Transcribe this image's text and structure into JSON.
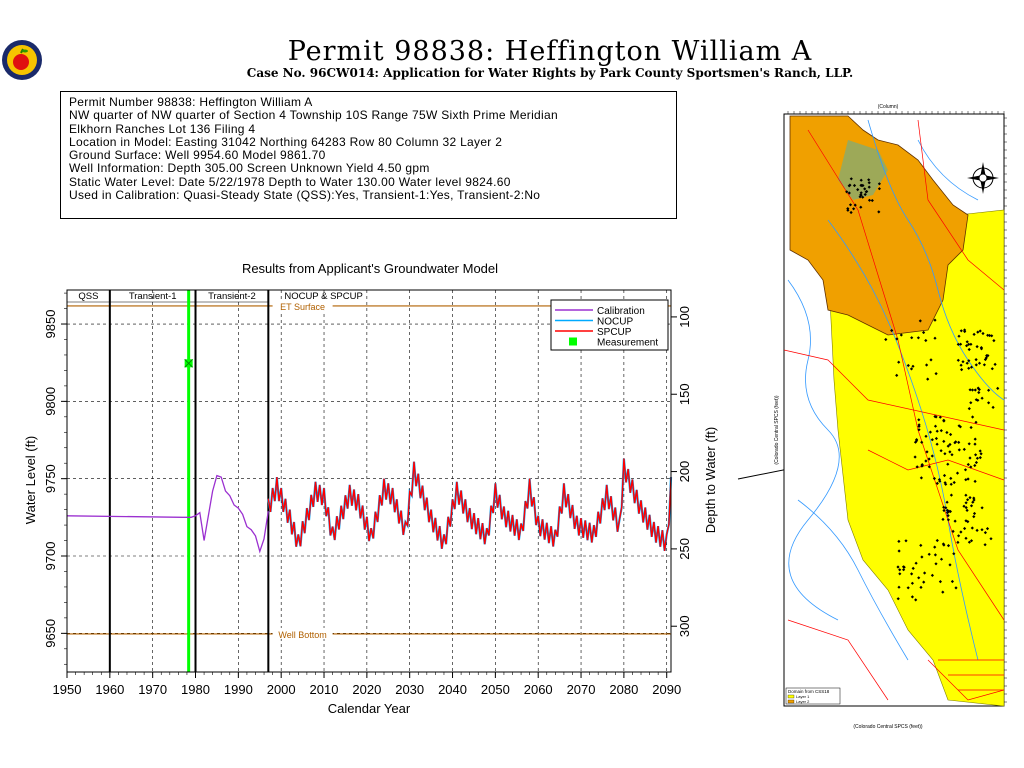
{
  "header": {
    "title": "Permit 98838:  Heffington William A",
    "subtitle": "Case No. 96CW014: Application for Water Rights by Park County Sportsmen's Ranch, LLP."
  },
  "info": {
    "lines": [
      "Permit Number 98838: Heffington William A",
      "",
      "NW quarter of NW quarter of Section 4 Township 10S Range 75W Sixth Prime Meridian",
      "Elkhorn Ranches Lot 136 Filing 4",
      "Location in Model: Easting 31042 Northing  64283 Row  80 Column 32 Layer 2",
      "Ground Surface: Well  9954.60 Model  9861.70",
      "Well Information: Depth   305.00 Screen Unknown Yield      4.50 gpm",
      "Static Water Level: Date  5/22/1978 Depth to Water   130.00 Water level  9824.60",
      "Used in Calibration: Quasi-Steady State (QSS):Yes, Transient-1:Yes, Transient-2:No"
    ]
  },
  "map": {
    "north_arrow": "north-arrow",
    "x_axis_top_label": "(Column)",
    "y_axis_label": "(Colorado Central SPCS (feet))",
    "x_axis_label": "(Colorado Central SPCS (feet))",
    "legend_title": "Domain from CSS18",
    "legend_layers": [
      "Layer 1",
      "Layer 2"
    ],
    "colors": {
      "layer1": "#ffff00",
      "layer2": "#f0a000"
    }
  },
  "chart_data": {
    "type": "line",
    "title": "Results from Applicant's Groundwater Model",
    "xlabel": "Calendar Year",
    "ylabel": "Water Level (ft)",
    "y2label": "Depth to Water (ft)",
    "xlim": [
      1950,
      2091
    ],
    "ylim": [
      9625,
      9872
    ],
    "xticks": [
      1950,
      1960,
      1970,
      1980,
      1990,
      2000,
      2010,
      2020,
      2030,
      2040,
      2050,
      2060,
      2070,
      2080,
      2090
    ],
    "yticks": [
      9650,
      9700,
      9750,
      9800,
      9850
    ],
    "y2ticks": [
      100,
      150,
      200,
      250,
      300
    ],
    "ground_surface": 9954.6,
    "periods": [
      {
        "label": "QSS",
        "start": 1950,
        "end": 1960
      },
      {
        "label": "Transient-1",
        "start": 1960,
        "end": 1980
      },
      {
        "label": "Transient-2",
        "start": 1980,
        "end": 1997
      },
      {
        "label": "NOCUP  &  SPCUP",
        "start": 1997,
        "end": 2091
      }
    ],
    "reference_lines": [
      {
        "label": "ET Surface",
        "y": 9861.7,
        "color": "#b06000"
      },
      {
        "label": "Well Bottom",
        "y": 9649.6,
        "color": "#b06000"
      }
    ],
    "measurement": {
      "label": "Measurement",
      "x": 1978.4,
      "y": 9824.6,
      "color": "#00ff00"
    },
    "legend": [
      {
        "name": "Calibration",
        "color": "#9b30d0"
      },
      {
        "name": "NOCUP",
        "color": "#00aaff"
      },
      {
        "name": "SPCUP",
        "color": "#ff0000"
      },
      {
        "name": "Measurement",
        "color": "#00ff00"
      }
    ],
    "series": [
      {
        "name": "Calibration",
        "color": "#9b30d0",
        "x": [
          1950,
          1977,
          1979,
          1980,
          1981,
          1982,
          1984,
          1985,
          1986,
          1987,
          1988,
          1989,
          1990,
          1991,
          1992,
          1993,
          1994,
          1995,
          1996,
          1997
        ],
        "y": [
          9726,
          9725,
          9725,
          9726,
          9728,
          9710,
          9742,
          9752,
          9751,
          9742,
          9739,
          9733,
          9731,
          9727,
          9719,
          9717,
          9713,
          9703,
          9711,
          9729
        ]
      },
      {
        "name": "NOCUP",
        "color": "#00aaff",
        "x": [
          1997,
          1999,
          2002,
          2004,
          2008,
          2010,
          2012,
          2016,
          2018,
          2021,
          2024,
          2026,
          2029,
          2031,
          2035,
          2038,
          2041,
          2044,
          2048,
          2050,
          2052,
          2056,
          2058,
          2060,
          2064,
          2066,
          2069,
          2073,
          2076,
          2079,
          2080,
          2084,
          2087,
          2090,
          2091
        ],
        "y": [
          9731,
          9745,
          9724,
          9708,
          9742,
          9738,
          9713,
          9740,
          9734,
          9712,
          9744,
          9738,
          9716,
          9755,
          9724,
          9708,
          9742,
          9725,
          9712,
          9741,
          9726,
          9715,
          9744,
          9720,
          9711,
          9741,
          9720,
          9714,
          9740,
          9718,
          9757,
          9730,
          9716,
          9708,
          9745
        ]
      },
      {
        "name": "SPCUP",
        "color": "#ff0000",
        "x": [
          1997,
          1999,
          2002,
          2004,
          2008,
          2010,
          2012,
          2016,
          2018,
          2021,
          2024,
          2026,
          2029,
          2031,
          2035,
          2038,
          2041,
          2044,
          2048,
          2050,
          2052,
          2056,
          2058,
          2060,
          2064,
          2066,
          2069,
          2073,
          2076,
          2079,
          2080,
          2084,
          2087,
          2090,
          2091
        ],
        "y": [
          9731,
          9745,
          9724,
          9708,
          9742,
          9738,
          9713,
          9740,
          9734,
          9712,
          9744,
          9738,
          9716,
          9755,
          9724,
          9708,
          9742,
          9725,
          9712,
          9741,
          9726,
          9715,
          9744,
          9720,
          9711,
          9741,
          9720,
          9714,
          9740,
          9718,
          9757,
          9730,
          9716,
          9708,
          9745
        ]
      }
    ]
  }
}
